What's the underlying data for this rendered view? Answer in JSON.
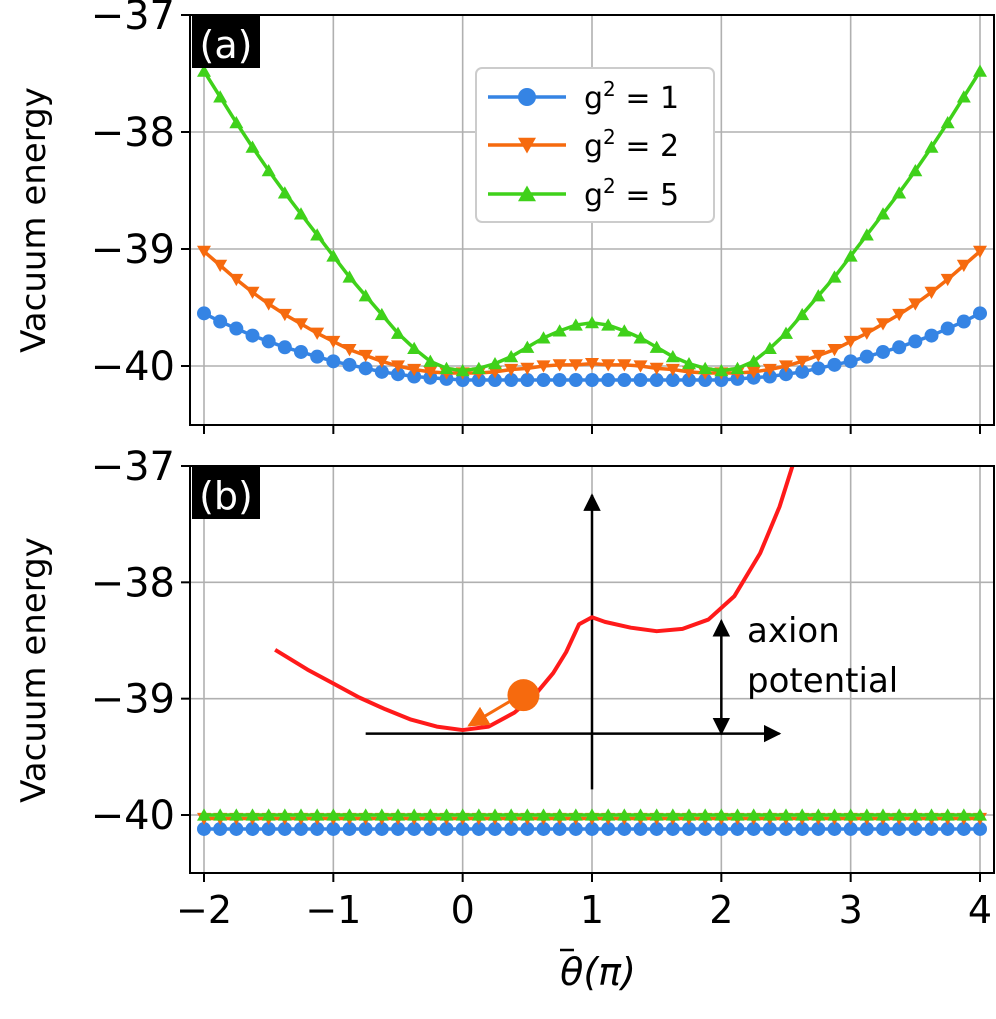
{
  "colors": {
    "g1": "#3584e4",
    "g2": "#f66a0e",
    "g5": "#3fd11a",
    "curve": "#ff1a1a",
    "ball": "#f66a0e",
    "grid": "#b0b0b0",
    "axis": "#000000",
    "label_bg": "#000000",
    "label_fg": "#ffffff"
  },
  "chart_data": [
    {
      "type": "line",
      "panel_label": "(a)",
      "ylabel": "Vacuum energy",
      "xlim": [
        -2,
        4
      ],
      "ylim": [
        -40.5,
        -37
      ],
      "yticks": [
        -37,
        -38,
        -39,
        -40
      ],
      "ytick_labels": [
        "−37",
        "−38",
        "−39",
        "−40"
      ],
      "grid": true,
      "legend_location": "upper-center",
      "series": [
        {
          "name": "g² = 1",
          "legend_base": "g",
          "legend_exp": "2",
          "legend_rest": " = 1",
          "marker": "circle",
          "color_key": "g1",
          "x": [
            -2,
            -1.875,
            -1.75,
            -1.625,
            -1.5,
            -1.375,
            -1.25,
            -1.125,
            -1,
            -0.875,
            -0.75,
            -0.625,
            -0.5,
            -0.375,
            -0.25,
            -0.125,
            0,
            0.125,
            0.25,
            0.375,
            0.5,
            0.625,
            0.75,
            0.875,
            1,
            1.125,
            1.25,
            1.375,
            1.5,
            1.625,
            1.75,
            1.875,
            2,
            2.125,
            2.25,
            2.375,
            2.5,
            2.625,
            2.75,
            2.875,
            3,
            3.125,
            3.25,
            3.375,
            3.5,
            3.625,
            3.75,
            3.875,
            4
          ],
          "y": [
            -39.55,
            -39.62,
            -39.68,
            -39.74,
            -39.79,
            -39.84,
            -39.88,
            -39.92,
            -39.96,
            -39.99,
            -40.02,
            -40.05,
            -40.07,
            -40.09,
            -40.1,
            -40.11,
            -40.12,
            -40.12,
            -40.12,
            -40.12,
            -40.12,
            -40.12,
            -40.12,
            -40.12,
            -40.12,
            -40.12,
            -40.12,
            -40.12,
            -40.12,
            -40.12,
            -40.12,
            -40.12,
            -40.12,
            -40.11,
            -40.1,
            -40.09,
            -40.07,
            -40.05,
            -40.02,
            -39.99,
            -39.96,
            -39.92,
            -39.88,
            -39.84,
            -39.79,
            -39.74,
            -39.68,
            -39.62,
            -39.55
          ]
        },
        {
          "name": "g² = 2",
          "legend_base": "g",
          "legend_exp": "2",
          "legend_rest": " = 2",
          "marker": "triangle-down",
          "color_key": "g2",
          "x": [
            -2,
            -1.875,
            -1.75,
            -1.625,
            -1.5,
            -1.375,
            -1.25,
            -1.125,
            -1,
            -0.875,
            -0.75,
            -0.625,
            -0.5,
            -0.375,
            -0.25,
            -0.125,
            0,
            0.125,
            0.25,
            0.375,
            0.5,
            0.625,
            0.75,
            0.875,
            1,
            1.125,
            1.25,
            1.375,
            1.5,
            1.625,
            1.75,
            1.875,
            2,
            2.125,
            2.25,
            2.375,
            2.5,
            2.625,
            2.75,
            2.875,
            3,
            3.125,
            3.25,
            3.375,
            3.5,
            3.625,
            3.75,
            3.875,
            4
          ],
          "y": [
            -39.02,
            -39.14,
            -39.26,
            -39.37,
            -39.47,
            -39.56,
            -39.64,
            -39.72,
            -39.79,
            -39.86,
            -39.91,
            -39.96,
            -40.0,
            -40.03,
            -40.05,
            -40.06,
            -40.06,
            -40.06,
            -40.05,
            -40.03,
            -40.02,
            -40.0,
            -39.99,
            -39.99,
            -39.98,
            -39.99,
            -39.99,
            -40.0,
            -40.02,
            -40.03,
            -40.05,
            -40.06,
            -40.06,
            -40.06,
            -40.05,
            -40.03,
            -40.0,
            -39.96,
            -39.91,
            -39.86,
            -39.79,
            -39.72,
            -39.64,
            -39.56,
            -39.47,
            -39.37,
            -39.26,
            -39.14,
            -39.02
          ]
        },
        {
          "name": "g² = 5",
          "legend_base": "g",
          "legend_exp": "2",
          "legend_rest": " = 5",
          "marker": "triangle-up",
          "color_key": "g5",
          "x": [
            -2,
            -1.875,
            -1.75,
            -1.625,
            -1.5,
            -1.375,
            -1.25,
            -1.125,
            -1,
            -0.875,
            -0.75,
            -0.625,
            -0.5,
            -0.375,
            -0.25,
            -0.125,
            0,
            0.125,
            0.25,
            0.375,
            0.5,
            0.625,
            0.75,
            0.875,
            1,
            1.125,
            1.25,
            1.375,
            1.5,
            1.625,
            1.75,
            1.875,
            2,
            2.125,
            2.25,
            2.375,
            2.5,
            2.625,
            2.75,
            2.875,
            3,
            3.125,
            3.25,
            3.375,
            3.5,
            3.625,
            3.75,
            3.875,
            4
          ],
          "y": [
            -37.48,
            -37.7,
            -37.92,
            -38.13,
            -38.33,
            -38.52,
            -38.7,
            -38.88,
            -39.06,
            -39.24,
            -39.4,
            -39.56,
            -39.72,
            -39.85,
            -39.96,
            -40.02,
            -40.04,
            -40.02,
            -39.98,
            -39.92,
            -39.84,
            -39.76,
            -39.7,
            -39.65,
            -39.63,
            -39.65,
            -39.7,
            -39.76,
            -39.84,
            -39.92,
            -39.98,
            -40.02,
            -40.04,
            -40.02,
            -39.96,
            -39.85,
            -39.72,
            -39.56,
            -39.4,
            -39.24,
            -39.06,
            -38.88,
            -38.7,
            -38.52,
            -38.33,
            -38.13,
            -37.92,
            -37.7,
            -37.48
          ]
        }
      ]
    },
    {
      "type": "line",
      "panel_label": "(b)",
      "ylabel": "Vacuum energy",
      "xlabel": "θ̄(π)",
      "xlabel_main": "θ",
      "xlabel_rest": "(π)",
      "xlim": [
        -2,
        4
      ],
      "ylim": [
        -40.5,
        -37
      ],
      "xticks": [
        -2,
        -1,
        0,
        1,
        2,
        3,
        4
      ],
      "xtick_labels": [
        "−2",
        "−1",
        "0",
        "1",
        "2",
        "3",
        "4"
      ],
      "yticks": [
        -37,
        -38,
        -39,
        -40
      ],
      "ytick_labels": [
        "−37",
        "−38",
        "−39",
        "−40"
      ],
      "grid": true,
      "series": [
        {
          "name": "g² = 1",
          "marker": "circle",
          "color_key": "g1",
          "value": -40.12
        },
        {
          "name": "g² = 2",
          "marker": "triangle-down",
          "color_key": "g2",
          "value": -40.03
        },
        {
          "name": "g² = 5",
          "marker": "triangle-up",
          "color_key": "g5",
          "value": -40.0
        }
      ],
      "inset": {
        "annotation_line1": "axion",
        "annotation_line2": "potential",
        "curve_x": [
          -1.45,
          -1.2,
          -1.0,
          -0.8,
          -0.6,
          -0.4,
          -0.2,
          0.0,
          0.2,
          0.4,
          0.55,
          0.7,
          0.8,
          0.9,
          1.0,
          1.1,
          1.3,
          1.5,
          1.7,
          1.9,
          2.1,
          2.3,
          2.45,
          2.55
        ],
        "curve_y": [
          -38.58,
          -38.75,
          -38.87,
          -38.99,
          -39.09,
          -39.18,
          -39.24,
          -39.27,
          -39.24,
          -39.12,
          -38.98,
          -38.78,
          -38.6,
          -38.36,
          -38.3,
          -38.34,
          -38.39,
          -38.42,
          -38.4,
          -38.32,
          -38.12,
          -37.75,
          -37.35,
          -37.0
        ],
        "ball": [
          0.47,
          -38.97
        ],
        "arrow_from": [
          0.4,
          -39.0
        ],
        "arrow_to": [
          0.05,
          -39.23
        ],
        "h_axis": [
          [
            -0.75,
            -39.3
          ],
          [
            2.45,
            -39.3
          ]
        ],
        "v_axis": [
          [
            1.0,
            -39.78
          ],
          [
            1.0,
            -37.25
          ]
        ],
        "double_arrow": [
          [
            2.0,
            -38.33
          ],
          [
            2.0,
            -39.3
          ]
        ]
      }
    }
  ]
}
